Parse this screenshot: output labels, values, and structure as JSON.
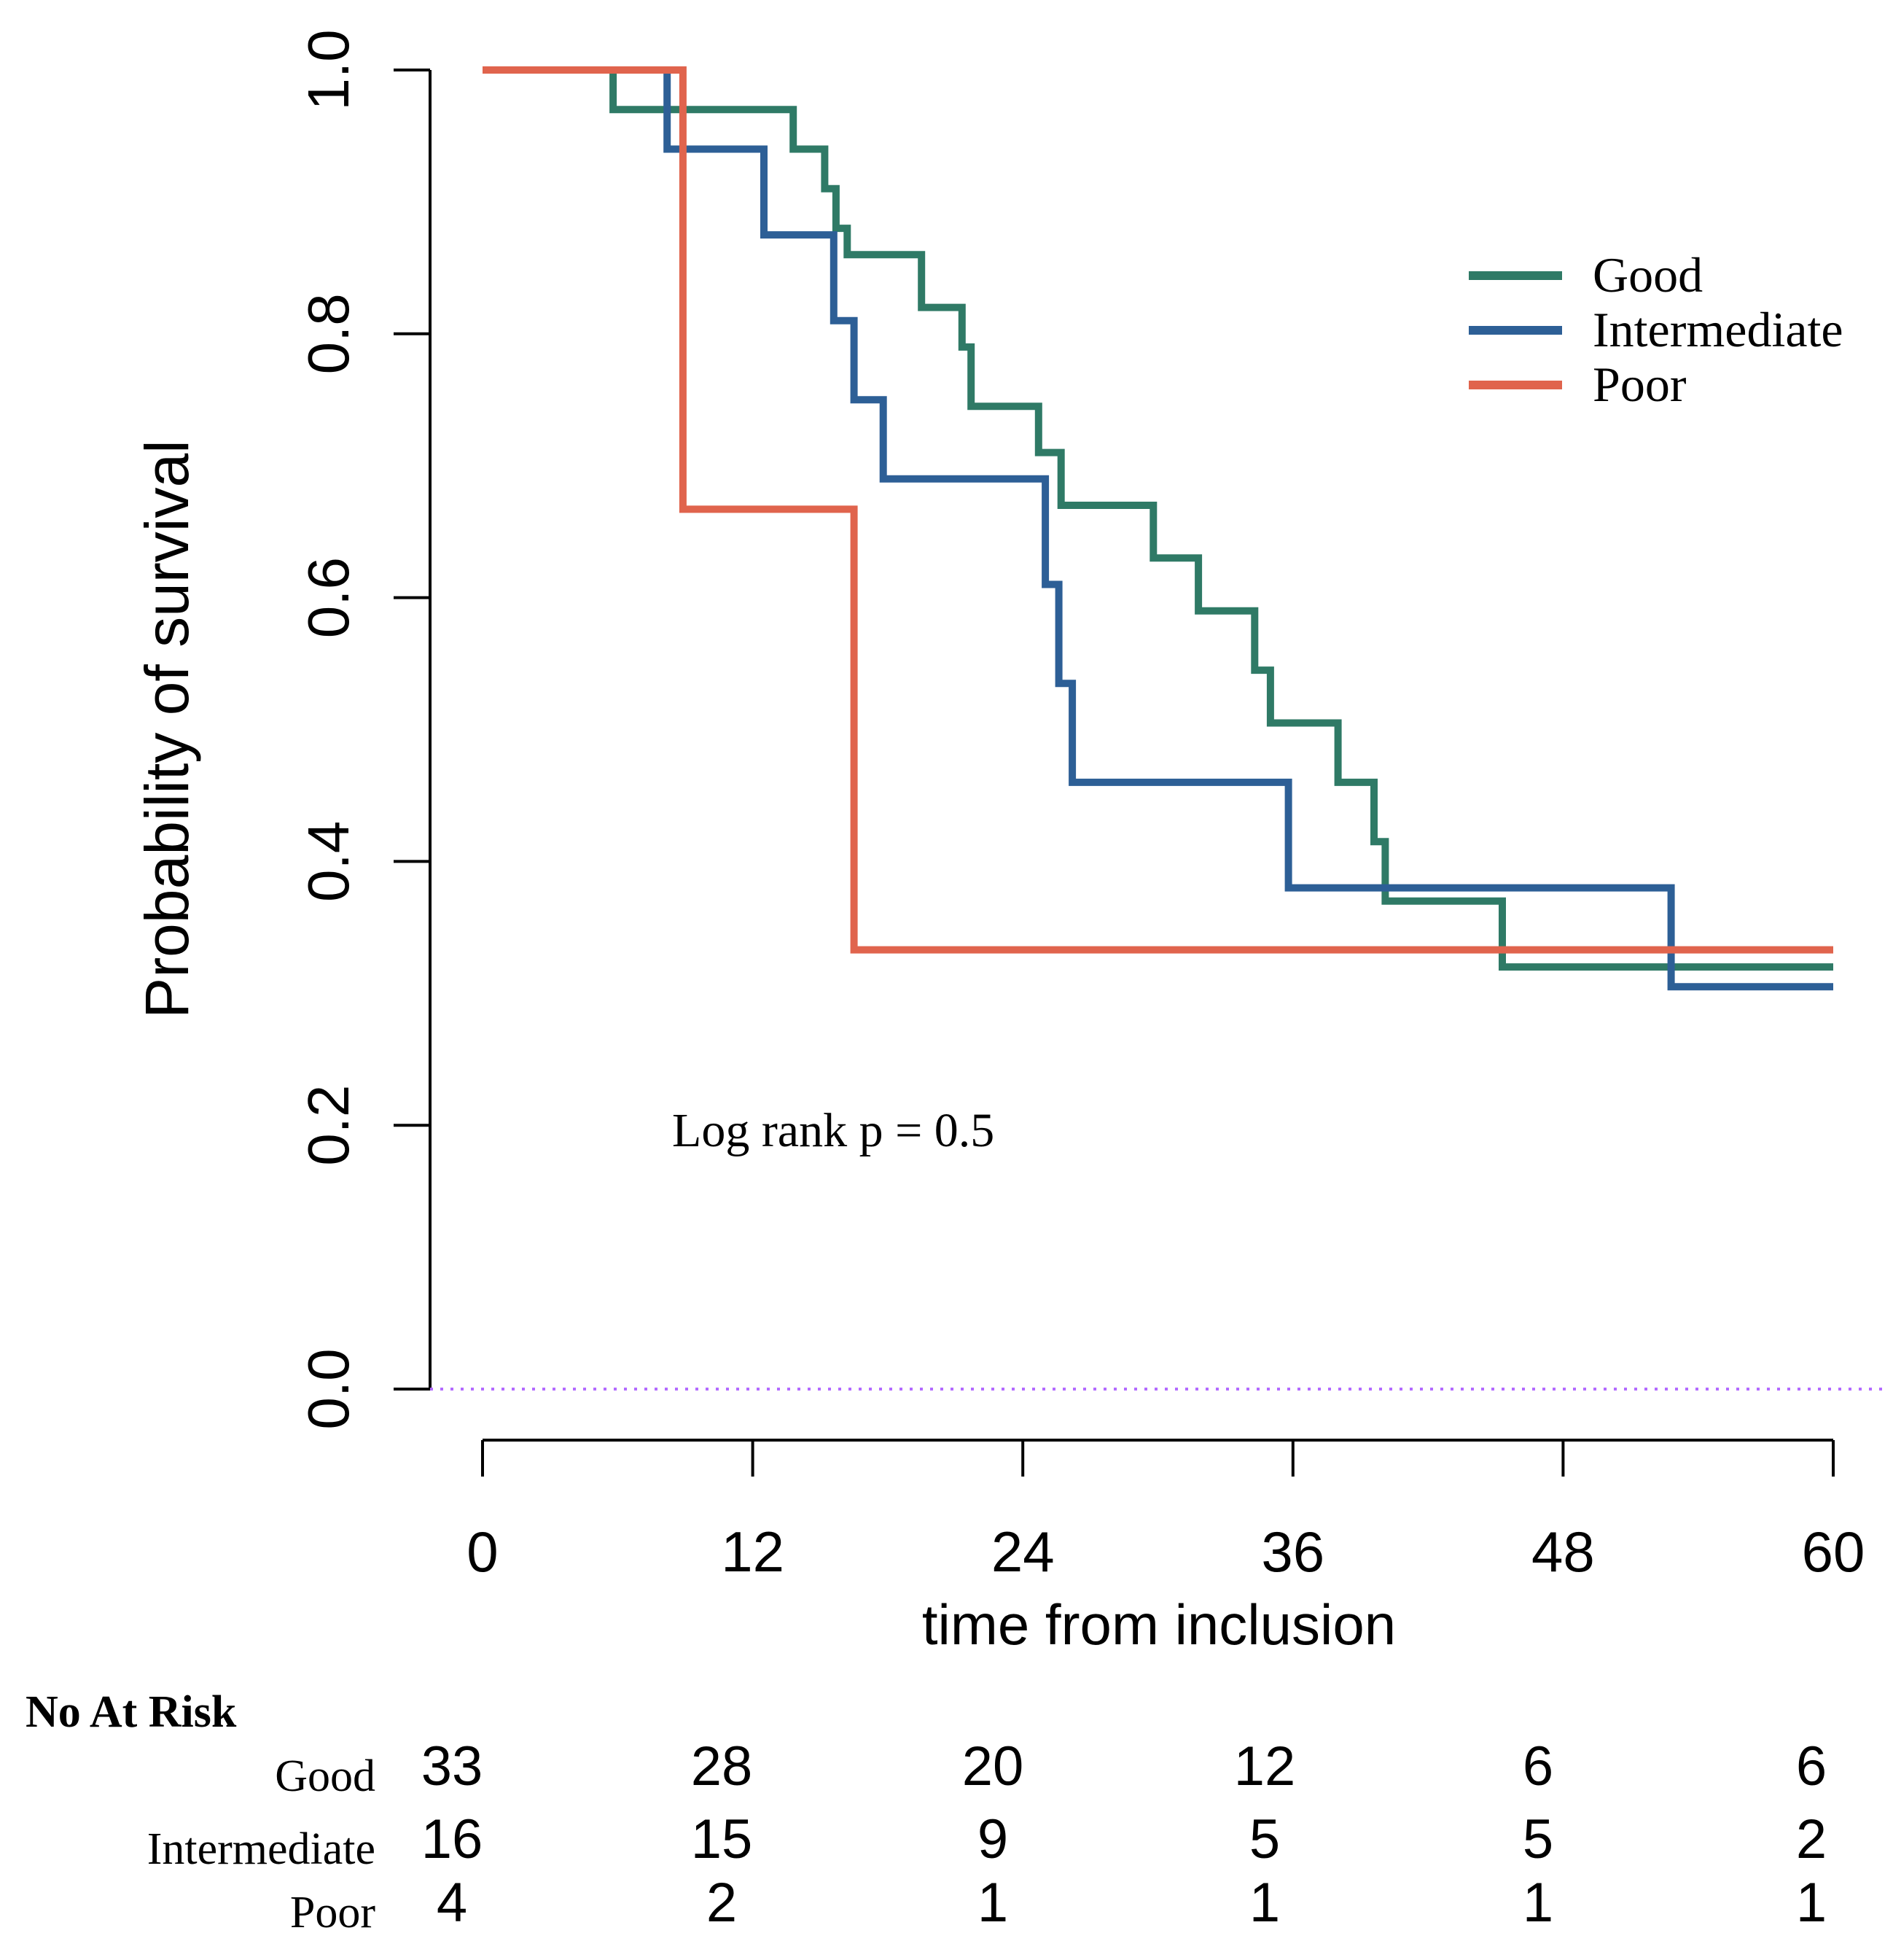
{
  "chart_data": {
    "type": "line",
    "subtype": "kaplan-meier",
    "title": "",
    "xlabel": "time from inclusion",
    "ylabel": "Probability of survival",
    "xlim": [
      0,
      60
    ],
    "ylim": [
      0,
      1
    ],
    "x_ticks": [
      0,
      12,
      24,
      36,
      48,
      60
    ],
    "x_tick_labels": [
      "0",
      "12",
      "24",
      "36",
      "48",
      "60"
    ],
    "y_ticks": [
      0,
      0.2,
      0.4,
      0.6,
      0.8,
      1
    ],
    "y_tick_labels": [
      "0.0",
      "0.2",
      "0.4",
      "0.6",
      "0.8",
      "1.0"
    ],
    "reference_line_y": 0,
    "legend_position": "top-right",
    "annotation": "Log rank p = 0.5",
    "colors": {
      "Good": "#2f7a66",
      "Intermediate": "#2d5f96",
      "Poor": "#e0644d",
      "reference": "#b36bff"
    },
    "series": [
      {
        "name": "Good",
        "steps": [
          [
            0,
            1.0
          ],
          [
            5.8,
            0.97
          ],
          [
            13.8,
            0.94
          ],
          [
            15.2,
            0.91
          ],
          [
            15.7,
            0.88
          ],
          [
            16.2,
            0.86
          ],
          [
            19.5,
            0.82
          ],
          [
            21.3,
            0.79
          ],
          [
            21.7,
            0.745
          ],
          [
            24.7,
            0.71
          ],
          [
            25.7,
            0.67
          ],
          [
            29.8,
            0.63
          ],
          [
            31.8,
            0.59
          ],
          [
            34.3,
            0.545
          ],
          [
            35.0,
            0.505
          ],
          [
            38.0,
            0.46
          ],
          [
            39.6,
            0.415
          ],
          [
            40.1,
            0.37
          ],
          [
            45.3,
            0.32
          ],
          [
            60,
            0.32
          ]
        ]
      },
      {
        "name": "Intermediate",
        "steps": [
          [
            0,
            1.0
          ],
          [
            8.2,
            0.94
          ],
          [
            12.5,
            0.875
          ],
          [
            15.6,
            0.81
          ],
          [
            16.5,
            0.75
          ],
          [
            17.8,
            0.69
          ],
          [
            25.0,
            0.61
          ],
          [
            25.6,
            0.535
          ],
          [
            26.2,
            0.46
          ],
          [
            35.8,
            0.38
          ],
          [
            52.8,
            0.305
          ],
          [
            60,
            0.305
          ]
        ]
      },
      {
        "name": "Poor",
        "steps": [
          [
            0,
            1.0
          ],
          [
            8.9,
            0.667
          ],
          [
            16.5,
            0.333
          ],
          [
            60,
            0.333
          ]
        ]
      }
    ],
    "at_risk_table": {
      "title": "No At Risk",
      "times": [
        0,
        12,
        24,
        36,
        48,
        60
      ],
      "rows": [
        {
          "label": "Good",
          "counts": [
            "33",
            "28",
            "20",
            "12",
            "6",
            "6"
          ]
        },
        {
          "label": "Intermediate",
          "counts": [
            "16",
            "15",
            "9",
            "5",
            "5",
            "2"
          ]
        },
        {
          "label": "Poor",
          "counts": [
            "4",
            "2",
            "1",
            "1",
            "1",
            "1"
          ]
        }
      ]
    }
  }
}
